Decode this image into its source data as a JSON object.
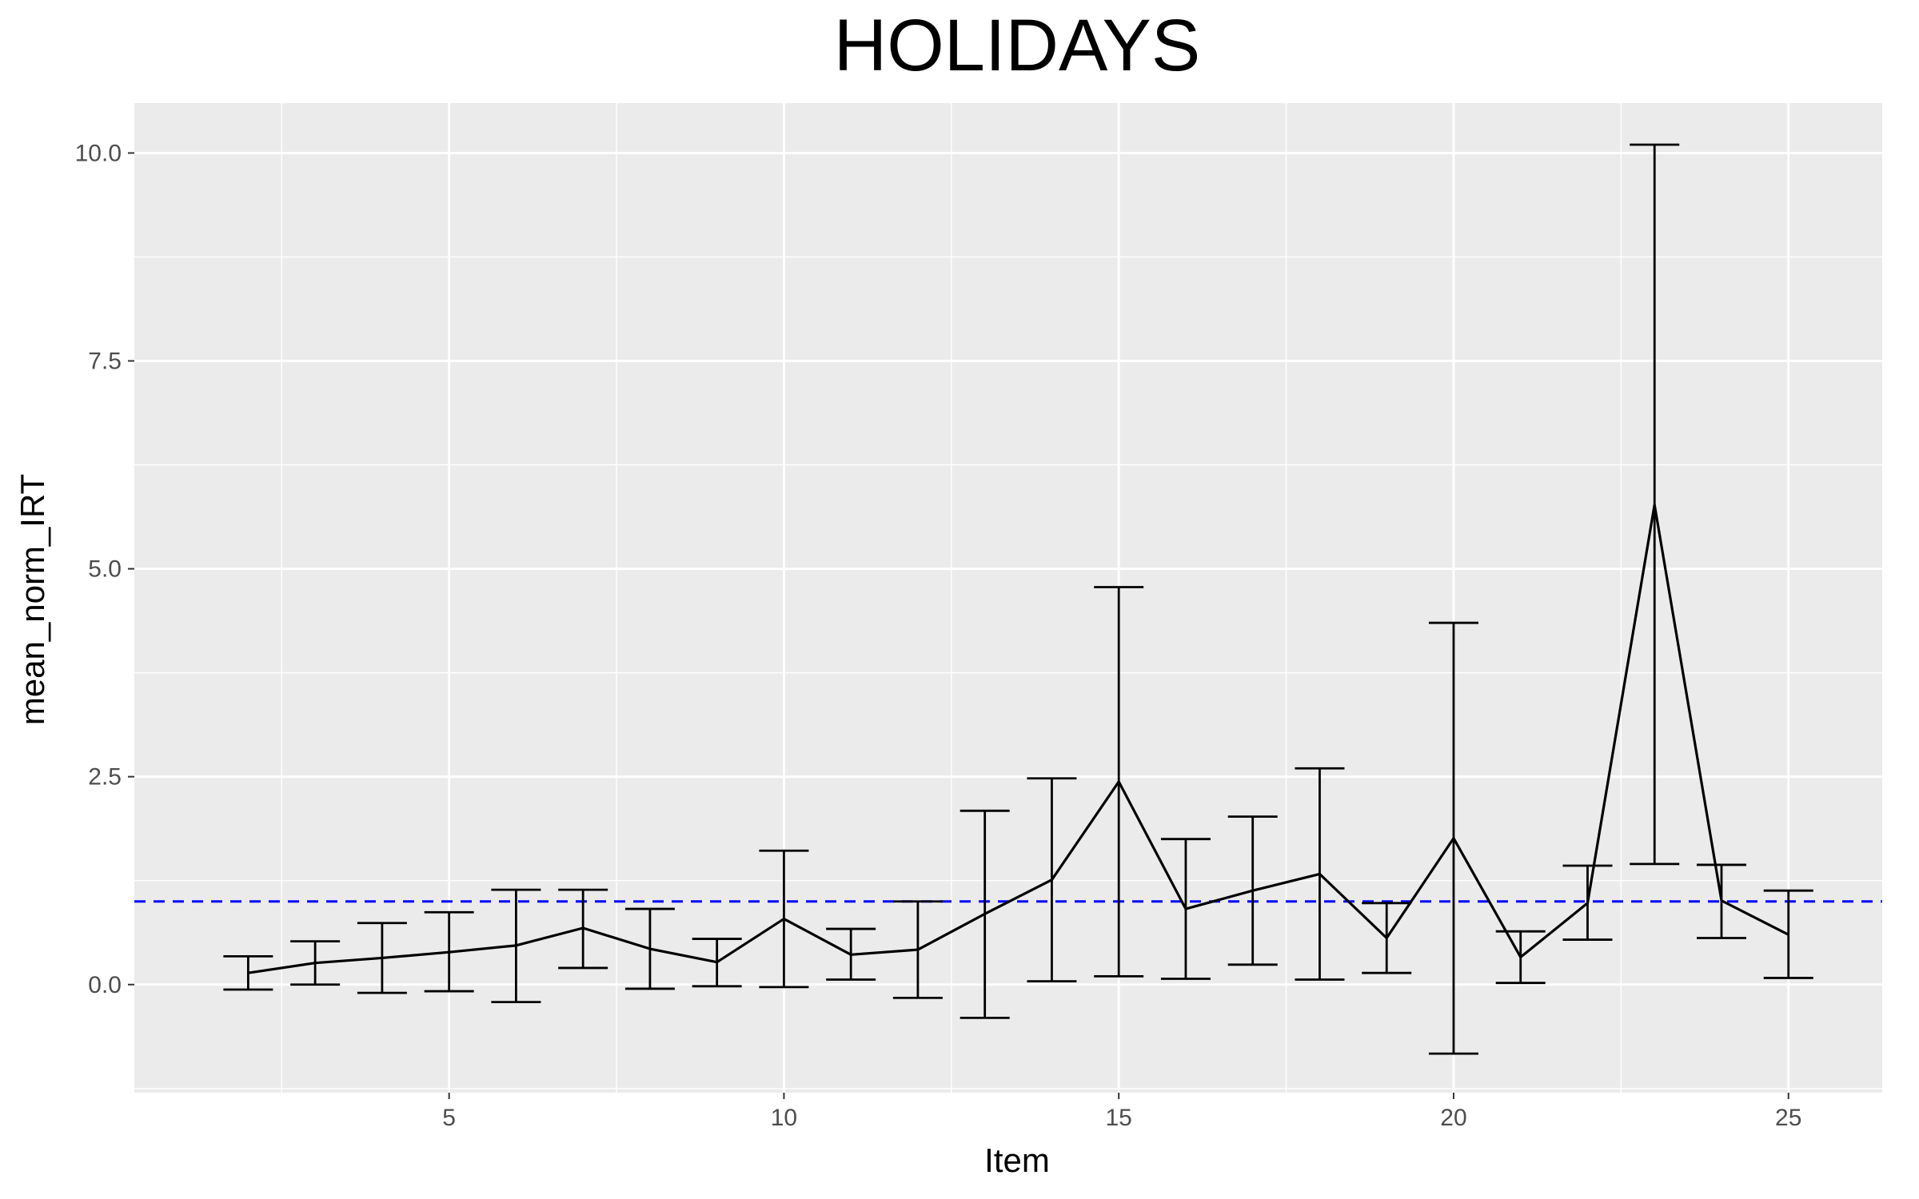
{
  "chart_data": {
    "type": "line",
    "title": "HOLIDAYS",
    "xlabel": "Item",
    "ylabel": "mean_norm_IRT",
    "xlim": [
      0.3,
      26.4
    ],
    "ylim": [
      -1.3,
      10.6
    ],
    "x_ticks": [
      5,
      10,
      15,
      20,
      25
    ],
    "x_tick_labels": [
      "5",
      "10",
      "15",
      "20",
      "25"
    ],
    "y_ticks": [
      0,
      2.5,
      5,
      7.5,
      10
    ],
    "y_tick_labels": [
      "0.0",
      "2.5",
      "5.0",
      "7.5",
      "10.0"
    ],
    "grid": true,
    "reference_line": {
      "y": 1.0,
      "style": "dashed",
      "color": "#0000ff"
    },
    "series": [
      {
        "x": [
          2,
          3,
          4,
          5,
          6,
          7,
          8,
          9,
          10,
          11,
          12,
          13,
          14,
          15,
          16,
          17,
          18,
          19,
          20,
          21,
          22,
          23,
          24,
          25
        ],
        "y": [
          0.14,
          0.26,
          0.32,
          0.39,
          0.47,
          0.68,
          0.43,
          0.27,
          0.79,
          0.36,
          0.42,
          0.85,
          1.26,
          2.44,
          0.91,
          1.13,
          1.33,
          0.56,
          1.76,
          0.33,
          0.98,
          5.77,
          1.01,
          0.6
        ],
        "ymin": [
          -0.06,
          0.0,
          -0.1,
          -0.08,
          -0.21,
          0.2,
          -0.05,
          -0.02,
          -0.03,
          0.06,
          -0.16,
          -0.4,
          0.04,
          0.1,
          0.07,
          0.24,
          0.06,
          0.14,
          -0.83,
          0.02,
          0.54,
          1.45,
          0.56,
          0.08
        ],
        "ymax": [
          0.34,
          0.52,
          0.74,
          0.87,
          1.14,
          1.14,
          0.91,
          0.55,
          1.61,
          0.67,
          1.0,
          2.09,
          2.48,
          4.78,
          1.75,
          2.02,
          2.6,
          0.98,
          4.35,
          0.64,
          1.43,
          10.1,
          1.44,
          1.13
        ]
      }
    ],
    "colors": {
      "panel_background": "#ebebeb",
      "grid": "#ffffff",
      "line": "#000000",
      "reference": "#0000ff"
    }
  }
}
